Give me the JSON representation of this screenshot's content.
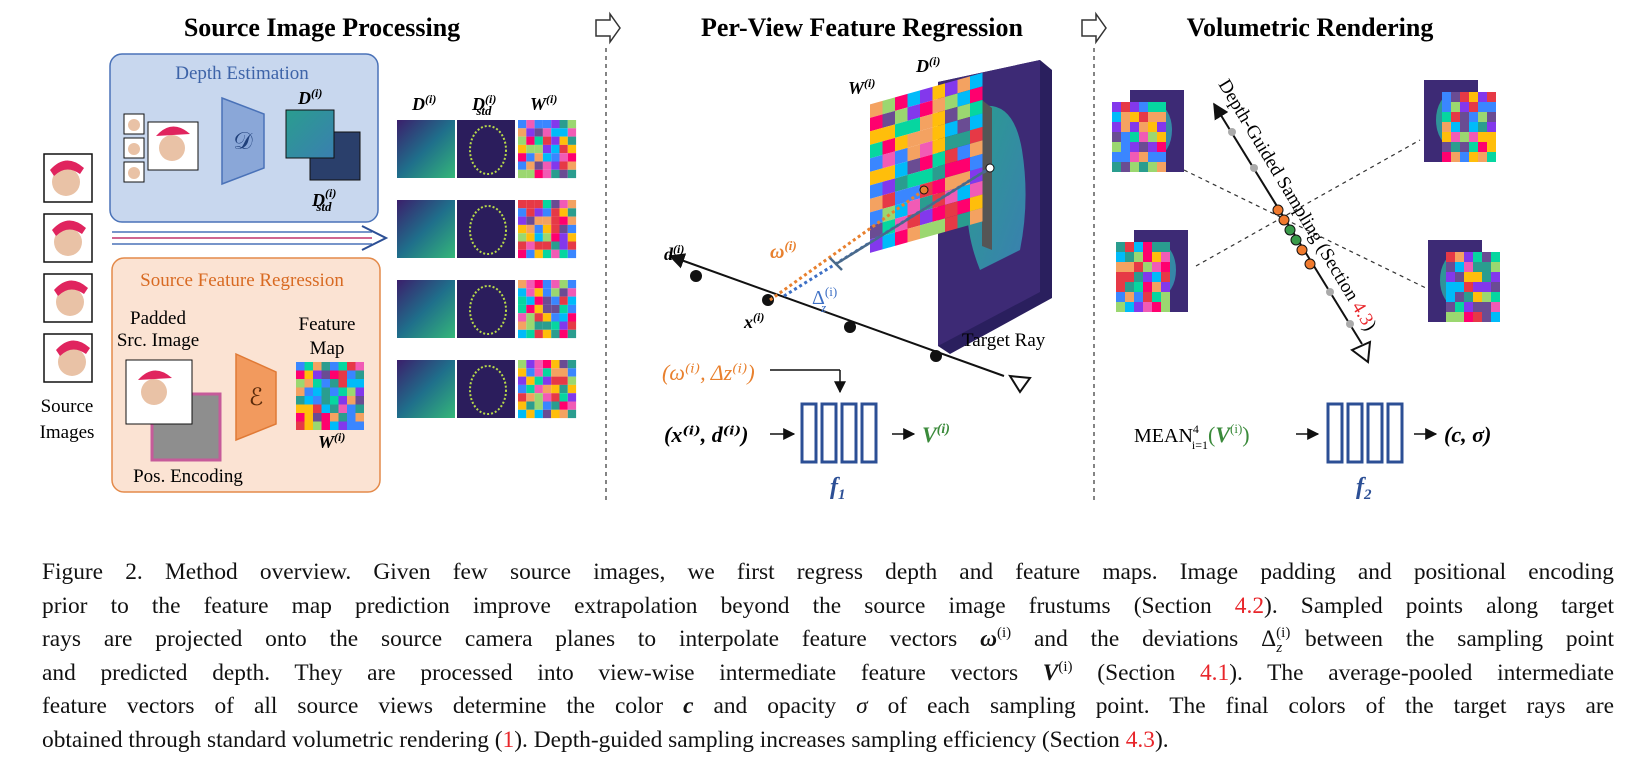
{
  "panels": {
    "source": {
      "title": "Source Image Processing",
      "depth_box_title": "Depth Estimation",
      "depth_net_symbol": "𝒟",
      "feature_box_title": "Source Feature Regression",
      "padded_label_1": "Padded",
      "padded_label_2": "Src. Image",
      "pos_encoding_label": "Pos. Encoding",
      "encoder_symbol": "ℰ",
      "feature_map_label_1": "Feature",
      "feature_map_label_2": "Map",
      "source_images_label_1": "Source",
      "source_images_label_2": "Images",
      "col_D": "D",
      "col_Dstd": "D",
      "col_W": "W",
      "sup_i": "(i)",
      "sub_std": "std"
    },
    "perview": {
      "title": "Per-View Feature Regression",
      "label_W": "W",
      "label_D": "D",
      "label_d": "d",
      "label_x": "x",
      "label_omega": "ω",
      "label_delta": "Δ",
      "sub_z": "z",
      "target_ray": "Target Ray",
      "inputs_top": "(ω⁽ⁱ⁾, Δz⁽ⁱ⁾)",
      "inputs_bottom": "(x⁽ⁱ⁾, d⁽ⁱ⁾)",
      "output": "V",
      "mlp": "f",
      "mlp_sub": "1",
      "sup_i": "(i)"
    },
    "volumetric": {
      "title": "Volumetric Rendering",
      "sampling_label": "Depth-Guided Sampling (Section ",
      "sampling_ref": "4.3",
      "sampling_close": ")",
      "mean_label": "MEAN",
      "mean_sup": "4",
      "mean_sub": "i=1",
      "mean_arg": "V",
      "output": "(c, σ)",
      "mlp": "f",
      "mlp_sub": "2",
      "sup_i": "(i)"
    }
  },
  "caption": {
    "l1": "Figure 2. Method overview. Given few source images, we first regress depth and feature maps. Image padding and positional encoding",
    "l2a": "prior to the feature map prediction improve extrapolation beyond the source image frustums (Section ",
    "l2ref": "4.2",
    "l2b": "). Sampled points along target",
    "l3a": "rays are projected onto the source camera planes to interpolate feature vectors ",
    "l3sym1": "ω",
    "l3b": " and the deviations ",
    "l3sym2": "Δ",
    "l3c": " between the sampling point",
    "l4a": "and predicted depth. They are processed into view-wise intermediate feature vectors ",
    "l4sym": "V",
    "l4b": " (Section ",
    "l4ref": "4.1",
    "l4c": "). The average-pooled intermediate",
    "l5a": "feature vectors of all source views determine the color ",
    "l5sym1": "c",
    "l5b": " and opacity ",
    "l5sym2": "σ",
    "l5c": " of each sampling point. The final colors of the target rays are",
    "l6a": "obtained through standard volumetric rendering (",
    "l6ref": "1",
    "l6b": "). Depth-guided sampling increases sampling efficiency (Section ",
    "l6ref2": "4.3",
    "l6c": ").",
    "sup_i": "(i)",
    "sub_z": "z"
  }
}
